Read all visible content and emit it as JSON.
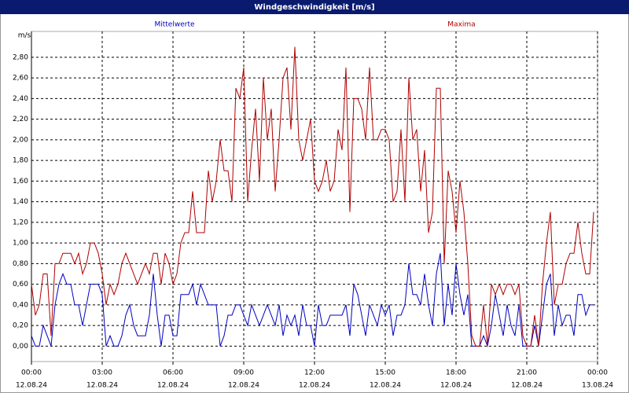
{
  "chart_data": {
    "type": "line",
    "title": "Windgeschwindigkeit [m/s]",
    "y_unit": "m/s",
    "x": [
      0,
      10,
      20,
      30,
      40,
      50,
      60,
      70,
      80,
      90,
      100,
      110,
      120,
      130,
      140,
      150,
      160,
      170,
      180,
      190,
      200,
      210,
      220,
      230,
      240,
      250,
      260,
      270,
      280,
      290,
      300,
      310,
      320,
      330,
      340,
      350,
      360,
      370,
      380,
      390,
      400,
      410,
      420,
      430,
      440,
      450,
      460,
      470,
      480,
      490,
      500,
      510,
      520,
      530,
      540,
      550,
      560,
      570,
      580,
      590,
      600,
      610,
      620,
      630,
      640,
      650,
      660,
      670,
      680,
      690,
      700,
      710,
      720,
      730,
      740,
      750,
      760,
      770,
      780,
      790,
      800,
      810,
      820,
      830,
      840,
      850,
      860,
      870,
      880,
      890,
      900,
      910,
      920,
      930,
      940,
      950,
      960,
      970,
      980,
      990,
      1000,
      1010,
      1020,
      1030,
      1040,
      1050,
      1060,
      1070,
      1080,
      1090,
      1100,
      1110,
      1120,
      1130,
      1140,
      1150,
      1160,
      1170,
      1180,
      1190,
      1200,
      1210,
      1220,
      1230,
      1240,
      1250,
      1260,
      1270,
      1280,
      1290,
      1300,
      1310,
      1320,
      1330,
      1340,
      1350,
      1360,
      1370,
      1380,
      1390,
      1400,
      1410,
      1420,
      1430
    ],
    "series": [
      {
        "name": "Mittelwerte",
        "color": "#0000c0",
        "values": [
          0.1,
          0.0,
          0.0,
          0.2,
          0.1,
          0.0,
          0.4,
          0.6,
          0.7,
          0.6,
          0.6,
          0.4,
          0.4,
          0.2,
          0.4,
          0.6,
          0.6,
          0.6,
          0.5,
          0.0,
          0.1,
          0.0,
          0.0,
          0.1,
          0.3,
          0.4,
          0.2,
          0.1,
          0.1,
          0.1,
          0.3,
          0.7,
          0.3,
          0.0,
          0.3,
          0.3,
          0.1,
          0.1,
          0.5,
          0.5,
          0.5,
          0.6,
          0.4,
          0.6,
          0.5,
          0.4,
          0.4,
          0.4,
          0.0,
          0.1,
          0.3,
          0.3,
          0.4,
          0.4,
          0.3,
          0.2,
          0.4,
          0.3,
          0.2,
          0.3,
          0.4,
          0.3,
          0.2,
          0.4,
          0.1,
          0.3,
          0.2,
          0.3,
          0.1,
          0.4,
          0.2,
          0.2,
          0.0,
          0.4,
          0.2,
          0.2,
          0.3,
          0.3,
          0.3,
          0.3,
          0.4,
          0.1,
          0.6,
          0.5,
          0.3,
          0.1,
          0.4,
          0.3,
          0.2,
          0.4,
          0.3,
          0.4,
          0.1,
          0.3,
          0.3,
          0.4,
          0.8,
          0.5,
          0.5,
          0.4,
          0.7,
          0.4,
          0.2,
          0.7,
          0.9,
          0.2,
          0.6,
          0.3,
          0.8,
          0.5,
          0.3,
          0.5,
          0.0,
          0.0,
          0.0,
          0.1,
          0.0,
          0.2,
          0.5,
          0.3,
          0.1,
          0.4,
          0.2,
          0.1,
          0.4,
          0.0,
          0.0,
          0.0,
          0.2,
          0.0,
          0.3,
          0.6,
          0.7,
          0.1,
          0.4,
          0.2,
          0.3,
          0.3,
          0.1,
          0.5,
          0.5,
          0.3,
          0.4,
          0.4
        ]
      },
      {
        "name": "Maxima",
        "color": "#b00000",
        "values": [
          0.6,
          0.3,
          0.4,
          0.7,
          0.7,
          0.1,
          0.8,
          0.8,
          0.9,
          0.9,
          0.9,
          0.8,
          0.9,
          0.7,
          0.8,
          1.0,
          1.0,
          0.9,
          0.7,
          0.4,
          0.6,
          0.5,
          0.6,
          0.8,
          0.9,
          0.8,
          0.7,
          0.6,
          0.7,
          0.8,
          0.7,
          0.9,
          0.9,
          0.6,
          0.9,
          0.8,
          0.6,
          0.7,
          1.0,
          1.1,
          1.1,
          1.5,
          1.1,
          1.1,
          1.1,
          1.7,
          1.4,
          1.6,
          2.0,
          1.7,
          1.7,
          1.4,
          2.5,
          2.4,
          2.7,
          1.4,
          1.9,
          2.3,
          1.6,
          2.6,
          2.0,
          2.3,
          1.5,
          2.0,
          2.6,
          2.7,
          2.1,
          2.9,
          2.0,
          1.8,
          2.0,
          2.2,
          1.6,
          1.5,
          1.6,
          1.8,
          1.5,
          1.6,
          2.1,
          1.9,
          2.7,
          1.3,
          2.4,
          2.4,
          2.3,
          2.0,
          2.7,
          2.0,
          2.0,
          2.1,
          2.1,
          2.0,
          1.4,
          1.5,
          2.1,
          1.4,
          2.6,
          2.0,
          2.1,
          1.5,
          1.9,
          1.1,
          1.3,
          2.5,
          2.5,
          0.8,
          1.7,
          1.5,
          1.1,
          1.6,
          1.3,
          0.8,
          0.1,
          0.0,
          0.0,
          0.4,
          0.0,
          0.6,
          0.5,
          0.6,
          0.5,
          0.6,
          0.6,
          0.5,
          0.6,
          0.1,
          0.0,
          0.0,
          0.3,
          0.0,
          0.6,
          1.0,
          1.3,
          0.4,
          0.6,
          0.6,
          0.8,
          0.9,
          0.9,
          1.2,
          0.9,
          0.7,
          0.7,
          1.3
        ]
      }
    ],
    "xlim": [
      0,
      1440
    ],
    "xticks": [
      {
        "value": 0,
        "label": "00:00"
      },
      {
        "value": 180,
        "label": "03:00"
      },
      {
        "value": 360,
        "label": "06:00"
      },
      {
        "value": 540,
        "label": "09:00"
      },
      {
        "value": 720,
        "label": "12:00"
      },
      {
        "value": 900,
        "label": "15:00"
      },
      {
        "value": 1080,
        "label": "18:00"
      },
      {
        "value": 1260,
        "label": "21:00"
      },
      {
        "value": 1440,
        "label": "00:00"
      }
    ],
    "xtick_dates": [
      "12.08.24",
      "12.08.24",
      "12.08.24",
      "12.08.24",
      "12.08.24",
      "12.08.24",
      "12.08.24",
      "12.08.24",
      "13.08.24"
    ],
    "ylim": [
      -0.15,
      3.05
    ],
    "yticks": [
      {
        "value": 0,
        "label": "0,00"
      },
      {
        "value": 0.2,
        "label": "0,20"
      },
      {
        "value": 0.4,
        "label": "0,40"
      },
      {
        "value": 0.6,
        "label": "0,60"
      },
      {
        "value": 0.8,
        "label": "0,80"
      },
      {
        "value": 1.0,
        "label": "1,00"
      },
      {
        "value": 1.2,
        "label": "1,20"
      },
      {
        "value": 1.4,
        "label": "1,40"
      },
      {
        "value": 1.6,
        "label": "1,60"
      },
      {
        "value": 1.8,
        "label": "1,80"
      },
      {
        "value": 2.0,
        "label": "2,00"
      },
      {
        "value": 2.2,
        "label": "2,20"
      },
      {
        "value": 2.4,
        "label": "2,40"
      },
      {
        "value": 2.6,
        "label": "2,60"
      },
      {
        "value": 2.8,
        "label": "2,80"
      }
    ],
    "grid": true
  }
}
